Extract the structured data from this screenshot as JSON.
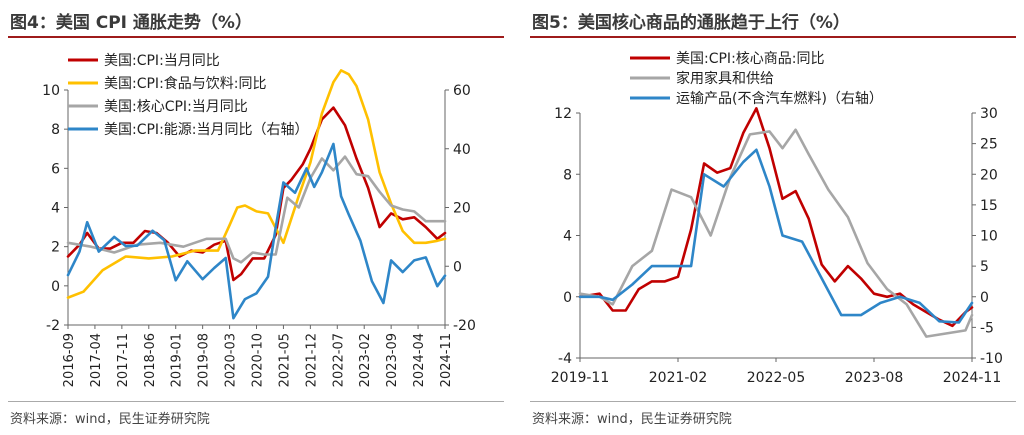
{
  "colors": {
    "red": "#c00000",
    "yellow": "#ffc000",
    "gray": "#a6a6a6",
    "blue": "#2e86c8",
    "accent": "#9e1b1b"
  },
  "left": {
    "title": "图4：美国 CPI 通胀走势（%）",
    "source": "资料来源：wind，民生证券研究院",
    "chart_data": {
      "type": "line",
      "title": "图4：美国 CPI 通胀走势（%）",
      "x_ticks": [
        "2016-09",
        "2017-04",
        "2017-11",
        "2018-06",
        "2019-01",
        "2019-08",
        "2020-03",
        "2020-10",
        "2021-05",
        "2021-12",
        "2022-07",
        "2023-02",
        "2023-09",
        "2024-04",
        "2024-11"
      ],
      "ylim_left": [
        -2,
        10
      ],
      "yticks_left": [
        -2,
        0,
        2,
        4,
        6,
        8,
        10
      ],
      "ylim_right": [
        -20,
        60
      ],
      "yticks_right": [
        -20,
        0,
        20,
        40,
        60
      ],
      "grid": false,
      "legend": "top-left",
      "series": [
        {
          "name": "美国:CPI:当月同比",
          "axis": "left",
          "color": "red",
          "x": [
            "2016-09",
            "2016-12",
            "2017-02",
            "2017-05",
            "2017-08",
            "2017-11",
            "2018-02",
            "2018-05",
            "2018-08",
            "2018-11",
            "2019-02",
            "2019-05",
            "2019-08",
            "2019-11",
            "2020-02",
            "2020-04",
            "2020-06",
            "2020-09",
            "2020-12",
            "2021-03",
            "2021-05",
            "2021-07",
            "2021-10",
            "2021-12",
            "2022-03",
            "2022-06",
            "2022-09",
            "2022-12",
            "2023-03",
            "2023-06",
            "2023-09",
            "2023-12",
            "2024-03",
            "2024-06",
            "2024-09",
            "2024-11"
          ],
          "values": [
            1.5,
            2.1,
            2.7,
            1.9,
            1.9,
            2.2,
            2.2,
            2.8,
            2.7,
            2.2,
            1.5,
            1.8,
            1.7,
            2.1,
            2.3,
            0.3,
            0.6,
            1.4,
            1.4,
            2.6,
            5.0,
            5.4,
            6.2,
            7.0,
            8.5,
            9.1,
            8.2,
            6.5,
            5.0,
            3.0,
            3.7,
            3.4,
            3.5,
            3.0,
            2.4,
            2.7
          ]
        },
        {
          "name": "美国:CPI:食品与饮料:同比",
          "axis": "left",
          "color": "yellow",
          "x": [
            "2016-09",
            "2017-01",
            "2017-06",
            "2017-12",
            "2018-06",
            "2018-12",
            "2019-06",
            "2019-12",
            "2020-03",
            "2020-05",
            "2020-07",
            "2020-10",
            "2021-01",
            "2021-05",
            "2021-09",
            "2021-12",
            "2022-03",
            "2022-06",
            "2022-08",
            "2022-10",
            "2022-12",
            "2023-03",
            "2023-06",
            "2023-09",
            "2023-12",
            "2024-03",
            "2024-06",
            "2024-09",
            "2024-11"
          ],
          "values": [
            -0.6,
            -0.3,
            0.8,
            1.5,
            1.4,
            1.5,
            1.8,
            1.8,
            3.1,
            4.0,
            4.1,
            3.8,
            3.7,
            2.2,
            4.6,
            6.3,
            8.8,
            10.4,
            11.0,
            10.8,
            10.2,
            8.5,
            5.8,
            4.2,
            2.8,
            2.2,
            2.2,
            2.3,
            2.4
          ]
        },
        {
          "name": "美国:核心CPI:当月同比",
          "axis": "left",
          "color": "gray",
          "x": [
            "2016-09",
            "2017-03",
            "2017-09",
            "2018-03",
            "2018-09",
            "2019-03",
            "2019-09",
            "2020-02",
            "2020-04",
            "2020-06",
            "2020-09",
            "2020-12",
            "2021-03",
            "2021-06",
            "2021-09",
            "2021-12",
            "2022-03",
            "2022-06",
            "2022-09",
            "2022-12",
            "2023-03",
            "2023-06",
            "2023-09",
            "2023-12",
            "2024-03",
            "2024-06",
            "2024-09",
            "2024-11"
          ],
          "values": [
            2.2,
            2.0,
            1.7,
            2.1,
            2.2,
            2.0,
            2.4,
            2.4,
            1.4,
            1.2,
            1.7,
            1.6,
            1.6,
            4.5,
            4.0,
            5.5,
            6.5,
            5.9,
            6.6,
            5.7,
            5.6,
            4.8,
            4.1,
            3.9,
            3.8,
            3.3,
            3.3,
            3.3
          ]
        },
        {
          "name": "美国:CPI:能源:当月同比（右轴）",
          "axis": "right",
          "color": "blue",
          "x": [
            "2016-09",
            "2016-12",
            "2017-02",
            "2017-05",
            "2017-09",
            "2017-12",
            "2018-03",
            "2018-07",
            "2018-10",
            "2019-01",
            "2019-04",
            "2019-08",
            "2019-11",
            "2020-02",
            "2020-04",
            "2020-07",
            "2020-10",
            "2021-01",
            "2021-03",
            "2021-05",
            "2021-08",
            "2021-11",
            "2022-01",
            "2022-03",
            "2022-06",
            "2022-08",
            "2022-10",
            "2023-01",
            "2023-04",
            "2023-07",
            "2023-09",
            "2023-12",
            "2024-03",
            "2024-06",
            "2024-09",
            "2024-11"
          ],
          "values": [
            -3.0,
            5.0,
            15.0,
            5.0,
            10.0,
            6.9,
            7.0,
            12.1,
            8.9,
            -4.8,
            1.7,
            -4.4,
            -0.6,
            2.8,
            -17.7,
            -11.2,
            -9.2,
            -3.6,
            13.2,
            28.5,
            25.0,
            33.3,
            27.0,
            32.0,
            41.6,
            23.8,
            17.6,
            8.7,
            -5.1,
            -12.5,
            2.0,
            -2.0,
            2.0,
            3.0,
            -6.8,
            -3.2
          ]
        }
      ]
    }
  },
  "right": {
    "title": "图5：美国核心商品的通胀趋于上行（%）",
    "source": "资料来源：wind，民生证券研究院",
    "chart_data": {
      "type": "line",
      "title": "图5：美国核心商品的通胀趋于上行（%）",
      "x_ticks": [
        "2019-11",
        "2021-02",
        "2022-05",
        "2023-08",
        "2024-11"
      ],
      "ylim_left": [
        -4,
        12
      ],
      "yticks_left": [
        -4,
        0,
        4,
        8,
        12
      ],
      "ylim_right": [
        -10,
        30
      ],
      "yticks_right": [
        -10,
        -5,
        0,
        5,
        10,
        15,
        20,
        25,
        30
      ],
      "grid": false,
      "legend": "top-left",
      "series": [
        {
          "name": "美国:CPI:核心商品:同比",
          "axis": "left",
          "color": "red",
          "x": [
            "2019-11",
            "2020-02",
            "2020-04",
            "2020-06",
            "2020-08",
            "2020-10",
            "2020-12",
            "2021-02",
            "2021-04",
            "2021-06",
            "2021-08",
            "2021-10",
            "2021-12",
            "2022-02",
            "2022-04",
            "2022-06",
            "2022-08",
            "2022-10",
            "2022-12",
            "2023-02",
            "2023-04",
            "2023-06",
            "2023-08",
            "2023-10",
            "2023-12",
            "2024-02",
            "2024-04",
            "2024-06",
            "2024-08",
            "2024-10",
            "2024-11"
          ],
          "values": [
            0.0,
            0.2,
            -0.9,
            -0.9,
            0.5,
            1.0,
            1.0,
            1.3,
            4.4,
            8.7,
            8.1,
            8.4,
            10.7,
            12.3,
            9.7,
            6.4,
            6.9,
            5.1,
            2.1,
            1.0,
            2.0,
            1.2,
            0.2,
            0.0,
            0.2,
            -0.5,
            -1.0,
            -1.5,
            -1.9,
            -1.0,
            -0.7
          ]
        },
        {
          "name": "家用家具和供给",
          "axis": "left",
          "color": "gray",
          "x": [
            "2019-11",
            "2020-02",
            "2020-04",
            "2020-07",
            "2020-10",
            "2021-01",
            "2021-04",
            "2021-07",
            "2021-10",
            "2022-01",
            "2022-04",
            "2022-06",
            "2022-08",
            "2022-10",
            "2023-01",
            "2023-04",
            "2023-07",
            "2023-10",
            "2024-01",
            "2024-04",
            "2024-07",
            "2024-10",
            "2024-11"
          ],
          "values": [
            0.2,
            0.0,
            -0.5,
            2.0,
            3.0,
            7.0,
            6.5,
            4.0,
            7.8,
            10.6,
            10.8,
            9.7,
            10.9,
            9.3,
            7.0,
            5.2,
            2.2,
            0.5,
            -0.5,
            -2.6,
            -2.4,
            -2.2,
            -1.2
          ]
        },
        {
          "name": "运输产品(不含汽车燃料)（右轴）",
          "axis": "right",
          "color": "blue",
          "x": [
            "2019-11",
            "2020-02",
            "2020-04",
            "2020-07",
            "2020-10",
            "2021-01",
            "2021-04",
            "2021-06",
            "2021-09",
            "2021-12",
            "2022-02",
            "2022-04",
            "2022-06",
            "2022-09",
            "2022-12",
            "2023-03",
            "2023-06",
            "2023-09",
            "2023-12",
            "2024-03",
            "2024-06",
            "2024-09",
            "2024-11"
          ],
          "values": [
            0.0,
            0.0,
            -0.5,
            2.0,
            5.0,
            5.0,
            5.0,
            20.0,
            18.0,
            22.0,
            24.0,
            18.0,
            10.0,
            9.0,
            3.0,
            -3.0,
            -3.0,
            -1.0,
            0.0,
            -1.0,
            -4.0,
            -4.2,
            -1.0
          ]
        }
      ]
    }
  }
}
